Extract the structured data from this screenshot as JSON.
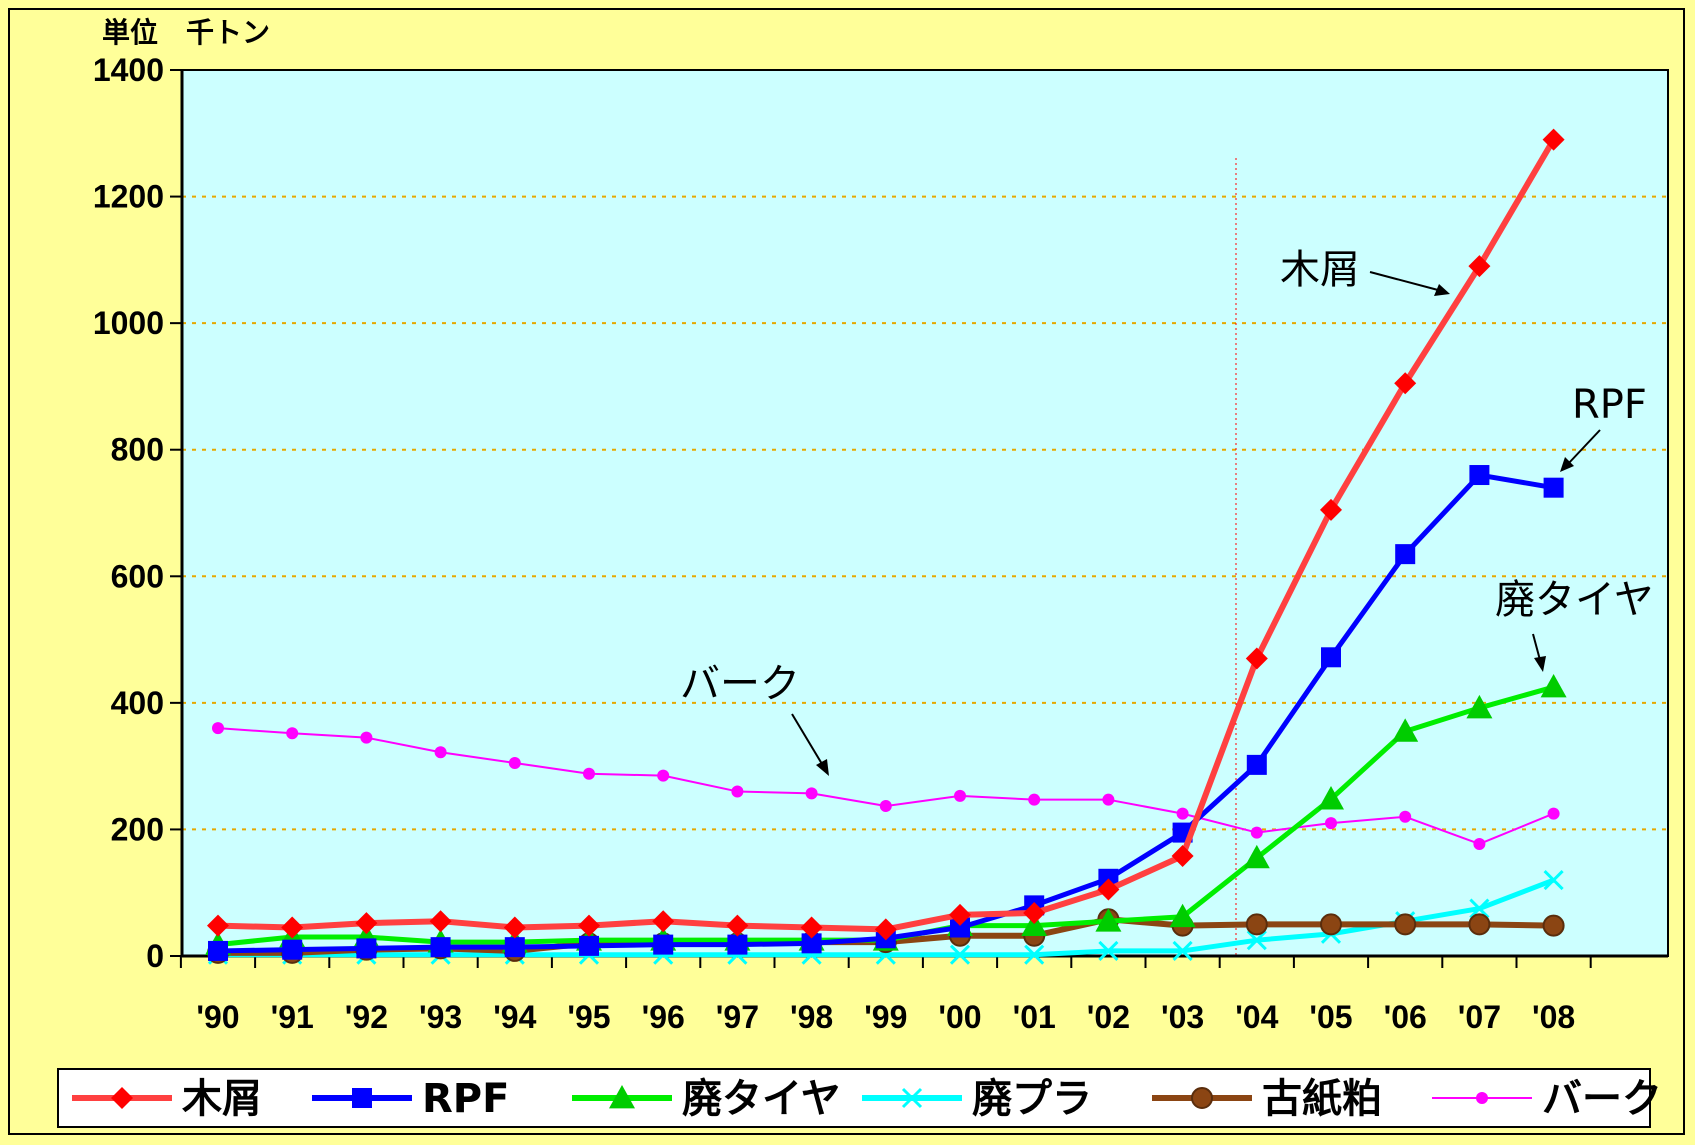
{
  "chart_data": {
    "type": "line",
    "unit_label": "単位　千トン",
    "categories": [
      "'90",
      "'91",
      "'92",
      "'93",
      "'94",
      "'95",
      "'96",
      "'97",
      "'98",
      "'99",
      "'00",
      "'01",
      "'02",
      "'03",
      "'04",
      "'05",
      "'06",
      "'07",
      "'08"
    ],
    "ylim": [
      0,
      1400
    ],
    "yticks": [
      0,
      200,
      400,
      600,
      800,
      1000,
      1200,
      1400
    ],
    "grid": "horizontal dotted",
    "legend_position": "bottom",
    "series": [
      {
        "name": "木屑",
        "color": "#ff0000",
        "line_color": "#ff4040",
        "marker": "diamond",
        "values": [
          48,
          45,
          52,
          55,
          45,
          48,
          55,
          48,
          45,
          42,
          65,
          68,
          105,
          158,
          470,
          705,
          905,
          1090,
          1290
        ]
      },
      {
        "name": "RPF",
        "color": "#0000ff",
        "line_color": "#0000ff",
        "marker": "square",
        "values": [
          8,
          10,
          12,
          14,
          14,
          16,
          18,
          18,
          20,
          28,
          45,
          80,
          122,
          195,
          302,
          472,
          635,
          760,
          740
        ]
      },
      {
        "name": "廃タイヤ",
        "color": "#00cc00",
        "line_color": "#00ee00",
        "marker": "triangle",
        "values": [
          18,
          30,
          30,
          22,
          22,
          25,
          25,
          25,
          25,
          25,
          48,
          48,
          55,
          62,
          155,
          248,
          355,
          392,
          425
        ]
      },
      {
        "name": "廃プラ",
        "color": "#00ffff",
        "line_color": "#00ffff",
        "marker": "x",
        "values": [
          2,
          2,
          2,
          2,
          2,
          2,
          2,
          2,
          2,
          2,
          2,
          2,
          8,
          8,
          25,
          35,
          55,
          75,
          120
        ]
      },
      {
        "name": "古紙粕",
        "color": "#8b4513",
        "line_color": "#8b4513",
        "marker": "circle",
        "values": [
          5,
          5,
          10,
          12,
          8,
          20,
          20,
          20,
          22,
          22,
          32,
          32,
          58,
          48,
          50,
          50,
          50,
          50,
          48
        ]
      },
      {
        "name": "バーク",
        "color": "#ff00ff",
        "line_color": "#ff00ff",
        "marker": "small-circle",
        "values": [
          360,
          352,
          345,
          322,
          305,
          288,
          285,
          260,
          257,
          237,
          253,
          247,
          247,
          225,
          195,
          210,
          220,
          177,
          225
        ]
      }
    ],
    "annotations": [
      "木屑",
      "RPF",
      "廃タイヤ",
      "バーク"
    ]
  }
}
